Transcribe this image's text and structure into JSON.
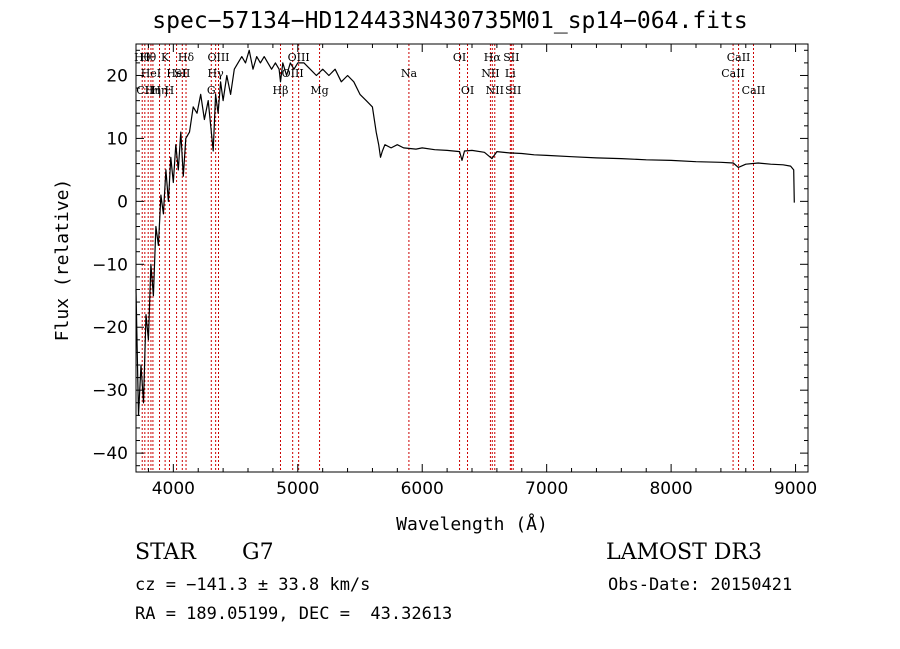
{
  "chart_data": {
    "type": "line",
    "title": "spec−57134−HD124433N430735M01_sp14−064.fits",
    "xlabel": "Wavelength (Å)",
    "ylabel": "Flux (relative)",
    "xlim": [
      3700,
      9100
    ],
    "ylim": [
      -43,
      25
    ],
    "x_ticks": [
      4000,
      5000,
      6000,
      7000,
      8000,
      9000
    ],
    "x_tick_labels": [
      "4000",
      "5000",
      "6000",
      "7000",
      "8000",
      "9000"
    ],
    "y_ticks": [
      -40,
      -30,
      -20,
      -10,
      0,
      10,
      20
    ],
    "y_tick_labels": [
      "−40",
      "−30",
      "−20",
      "−10",
      "0",
      "10",
      "20"
    ],
    "grid": false,
    "series": [
      {
        "name": "spectrum",
        "x": [
          3700,
          3720,
          3740,
          3760,
          3780,
          3800,
          3820,
          3840,
          3860,
          3880,
          3900,
          3920,
          3940,
          3960,
          3980,
          4000,
          4020,
          4040,
          4060,
          4080,
          4100,
          4130,
          4160,
          4190,
          4220,
          4250,
          4280,
          4300,
          4320,
          4340,
          4360,
          4380,
          4400,
          4430,
          4460,
          4490,
          4520,
          4550,
          4580,
          4610,
          4640,
          4670,
          4700,
          4730,
          4760,
          4790,
          4820,
          4850,
          4861,
          4880,
          4910,
          4940,
          4970,
          5000,
          5050,
          5100,
          5150,
          5200,
          5250,
          5300,
          5350,
          5400,
          5450,
          5500,
          5550,
          5600,
          5630,
          5650,
          5665,
          5680,
          5700,
          5750,
          5800,
          5850,
          5900,
          5950,
          6000,
          6100,
          6200,
          6300,
          6320,
          6340,
          6400,
          6500,
          6560,
          6600,
          6700,
          6800,
          6900,
          7000,
          7200,
          7400,
          7600,
          7800,
          8000,
          8200,
          8400,
          8500,
          8540,
          8600,
          8700,
          8800,
          8900,
          8960,
          8985,
          8990
        ],
        "y": [
          -14,
          -34,
          -26,
          -32,
          -18,
          -22,
          -10,
          -15,
          -4,
          -7,
          1,
          -2,
          5,
          0,
          7,
          3,
          9,
          5,
          11,
          4,
          10,
          11,
          15,
          14,
          17,
          13,
          16,
          12,
          8,
          17,
          14,
          19,
          16,
          20,
          17,
          21,
          22,
          23,
          22,
          24,
          21,
          23,
          22,
          23,
          22,
          21,
          22,
          21,
          19,
          22,
          20,
          22,
          21,
          22,
          22,
          21,
          20,
          21,
          20,
          21,
          19,
          20,
          19,
          17,
          16,
          15,
          11,
          9,
          7,
          8,
          9,
          8.5,
          9,
          8.5,
          8.4,
          8.3,
          8.5,
          8.2,
          8.1,
          7.9,
          6.5,
          8,
          8.1,
          7.8,
          6.8,
          7.9,
          7.7,
          7.6,
          7.4,
          7.3,
          7.1,
          6.9,
          6.8,
          6.6,
          6.5,
          6.3,
          6.2,
          6.1,
          5.4,
          5.9,
          6.1,
          5.9,
          5.8,
          5.6,
          5,
          -0.2
        ]
      }
    ],
    "lines": [
      {
        "x": 3750,
        "label": "Hθ",
        "row": 1
      },
      {
        "x": 3771,
        "label": "CII",
        "row": 3
      },
      {
        "x": 3798,
        "label": "Hθ",
        "row": 1
      },
      {
        "x": 3820,
        "label": "HeI",
        "row": 2
      },
      {
        "x": 3836,
        "label": "Hη",
        "row": 3
      },
      {
        "x": 3889,
        "label": "Hη",
        "row": 3
      },
      {
        "x": 3934,
        "label": "K",
        "row": 1
      },
      {
        "x": 3969,
        "label": "H",
        "row": 3
      },
      {
        "x": 4026,
        "label": "HeI",
        "row": 2
      },
      {
        "x": 4072,
        "label": "SII",
        "row": 2
      },
      {
        "x": 4102,
        "label": "Hδ",
        "row": 1
      },
      {
        "x": 4305,
        "label": "G",
        "row": 3
      },
      {
        "x": 4340,
        "label": "Hγ",
        "row": 2
      },
      {
        "x": 4363,
        "label": "OIII",
        "row": 1
      },
      {
        "x": 4861,
        "label": "Hβ",
        "row": 3
      },
      {
        "x": 4959,
        "label": "OIII",
        "row": 2
      },
      {
        "x": 5007,
        "label": "OIII",
        "row": 1
      },
      {
        "x": 5175,
        "label": "Mg",
        "row": 3
      },
      {
        "x": 5893,
        "label": "Na",
        "row": 2
      },
      {
        "x": 6300,
        "label": "OI",
        "row": 1
      },
      {
        "x": 6364,
        "label": "OI",
        "row": 3
      },
      {
        "x": 6548,
        "label": "NII",
        "row": 2
      },
      {
        "x": 6563,
        "label": "Hα",
        "row": 1
      },
      {
        "x": 6583,
        "label": "NII",
        "row": 3
      },
      {
        "x": 6708,
        "label": "Li",
        "row": 2
      },
      {
        "x": 6716,
        "label": "SII",
        "row": 1
      },
      {
        "x": 6731,
        "label": "SII",
        "row": 3
      },
      {
        "x": 8498,
        "label": "CaII",
        "row": 2
      },
      {
        "x": 8542,
        "label": "CaII",
        "row": 1
      },
      {
        "x": 8662,
        "label": "CaII",
        "row": 3
      }
    ],
    "line_color": "#cc0000",
    "spectrum_color": "#000000"
  },
  "info": {
    "object_class": "STAR",
    "subclass": "G7",
    "survey": "LAMOST DR3",
    "redshift": "cz = −141.3 ± 33.8 km/s",
    "obs_date": "Obs-Date: 20150421",
    "coords": "RA = 189.05199, DEC =  43.32613"
  }
}
